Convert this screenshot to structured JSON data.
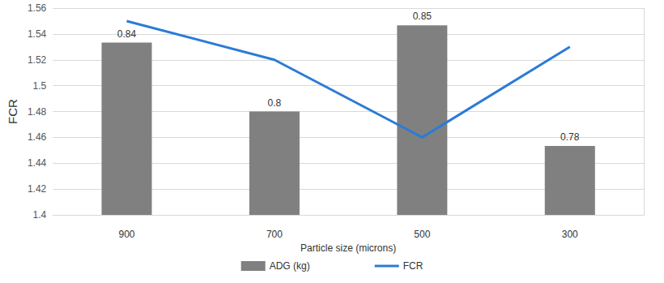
{
  "chart_data": {
    "type": "bar",
    "categories": [
      "900",
      "700",
      "500",
      "300"
    ],
    "x_label": "Particle size (microns)",
    "y_label": "FCR",
    "ylim": [
      1.4,
      1.56
    ],
    "yticks": [
      1.4,
      1.42,
      1.44,
      1.46,
      1.48,
      1.5,
      1.52,
      1.54,
      1.56
    ],
    "y2lim": [
      0.74,
      0.86
    ],
    "grid": true,
    "legend": "bottom",
    "series": [
      {
        "name": "ADG (kg)",
        "type": "bar",
        "color": "#808080",
        "axis": "y2",
        "data_labels": true,
        "values": [
          0.84,
          0.8,
          0.85,
          0.78
        ]
      },
      {
        "name": "FCR",
        "type": "line",
        "color": "#2b7bd6",
        "marker": "none",
        "values": [
          1.55,
          1.52,
          1.46,
          1.53
        ]
      }
    ]
  }
}
